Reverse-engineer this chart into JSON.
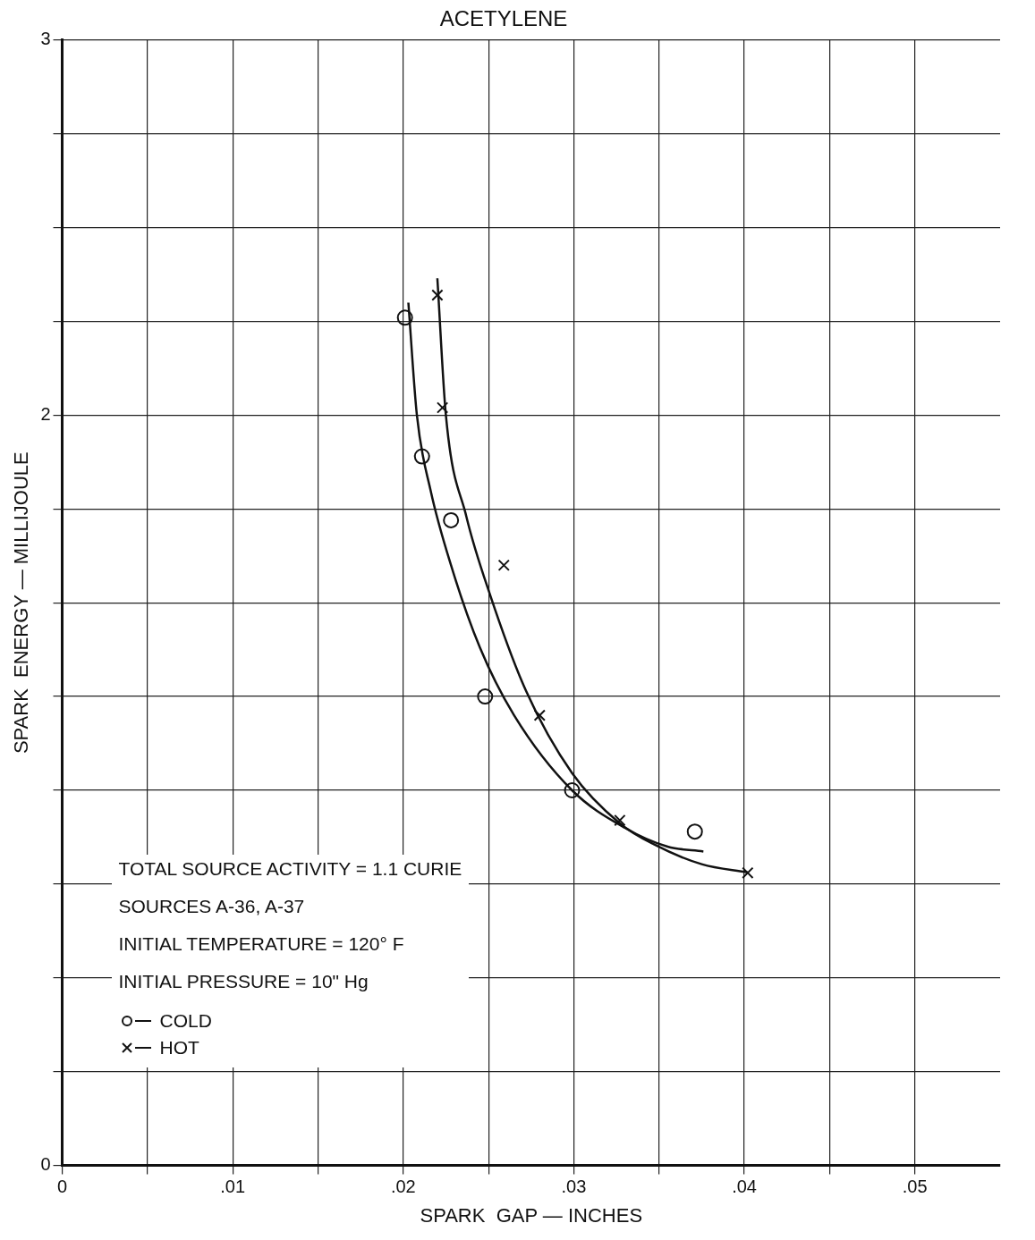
{
  "chart_data": {
    "type": "scatter",
    "title": "ACETYLENE",
    "xlabel": "SPARK  GAP — INCHES",
    "ylabel": "SPARK  ENERGY — MILLIJOULE",
    "xlim": [
      0,
      0.055
    ],
    "ylim": [
      0,
      3
    ],
    "xticks": [
      {
        "value": 0,
        "label": "0"
      },
      {
        "value": 0.005,
        "label": null
      },
      {
        "value": 0.01,
        "label": ".01"
      },
      {
        "value": 0.015,
        "label": null
      },
      {
        "value": 0.02,
        "label": ".02"
      },
      {
        "value": 0.025,
        "label": null
      },
      {
        "value": 0.03,
        "label": ".03"
      },
      {
        "value": 0.035,
        "label": null
      },
      {
        "value": 0.04,
        "label": ".04"
      },
      {
        "value": 0.045,
        "label": null
      },
      {
        "value": 0.05,
        "label": ".05"
      }
    ],
    "yticks": [
      0,
      {
        "value": 0.25,
        "label": null
      },
      {
        "value": 0.5,
        "label": null
      },
      {
        "value": 0.75,
        "label": null
      },
      {
        "value": 1,
        "label": null
      },
      {
        "value": 1.25,
        "label": null
      },
      {
        "value": 1.5,
        "label": null
      },
      {
        "value": 1.75,
        "label": null
      },
      2,
      {
        "value": 2.25,
        "label": null
      },
      {
        "value": 2.5,
        "label": null
      },
      {
        "value": 2.75,
        "label": null
      },
      3
    ],
    "grid": true,
    "legend": "bottom left",
    "annotations": [
      "TOTAL SOURCE ACTIVITY = 1.1 CURIE",
      "SOURCES A-36, A-37",
      "INITIAL TEMPERATURE = 120° F",
      "INITIAL PRESSURE = 10\" Hg"
    ],
    "series": [
      {
        "type": "line",
        "marker": "none",
        "color": "#111111",
        "x": [
          0.0203,
          0.0208,
          0.0216,
          0.0228,
          0.0245,
          0.0265,
          0.0299,
          0.033,
          0.0355,
          0.0376
        ],
        "values": [
          2.3,
          2.0,
          1.8,
          1.6,
          1.38,
          1.2,
          1.0,
          0.9,
          0.85,
          0.837
        ]
      },
      {
        "type": "line",
        "marker": "none",
        "color": "#111111",
        "x": [
          0.022,
          0.0225,
          0.0237,
          0.0251,
          0.0272,
          0.0299,
          0.0327,
          0.0347,
          0.0375,
          0.0402
        ],
        "values": [
          2.365,
          2.0,
          1.73,
          1.52,
          1.265,
          1.046,
          0.912,
          0.856,
          0.803,
          0.781
        ]
      },
      {
        "name": "COLD",
        "marker": "circle",
        "color": "#111111",
        "x": [
          0.0201,
          0.0211,
          0.0228,
          0.0248,
          0.0299,
          0.0371
        ],
        "values": [
          2.26,
          1.89,
          1.72,
          1.25,
          1.0,
          0.89
        ]
      },
      {
        "name": "HOT",
        "marker": "cross",
        "color": "#111111",
        "x": [
          0.022,
          0.0223,
          0.0259,
          0.028,
          0.0327,
          0.0402
        ],
        "values": [
          2.32,
          2.02,
          1.6,
          1.2,
          0.92,
          0.78
        ]
      }
    ]
  }
}
